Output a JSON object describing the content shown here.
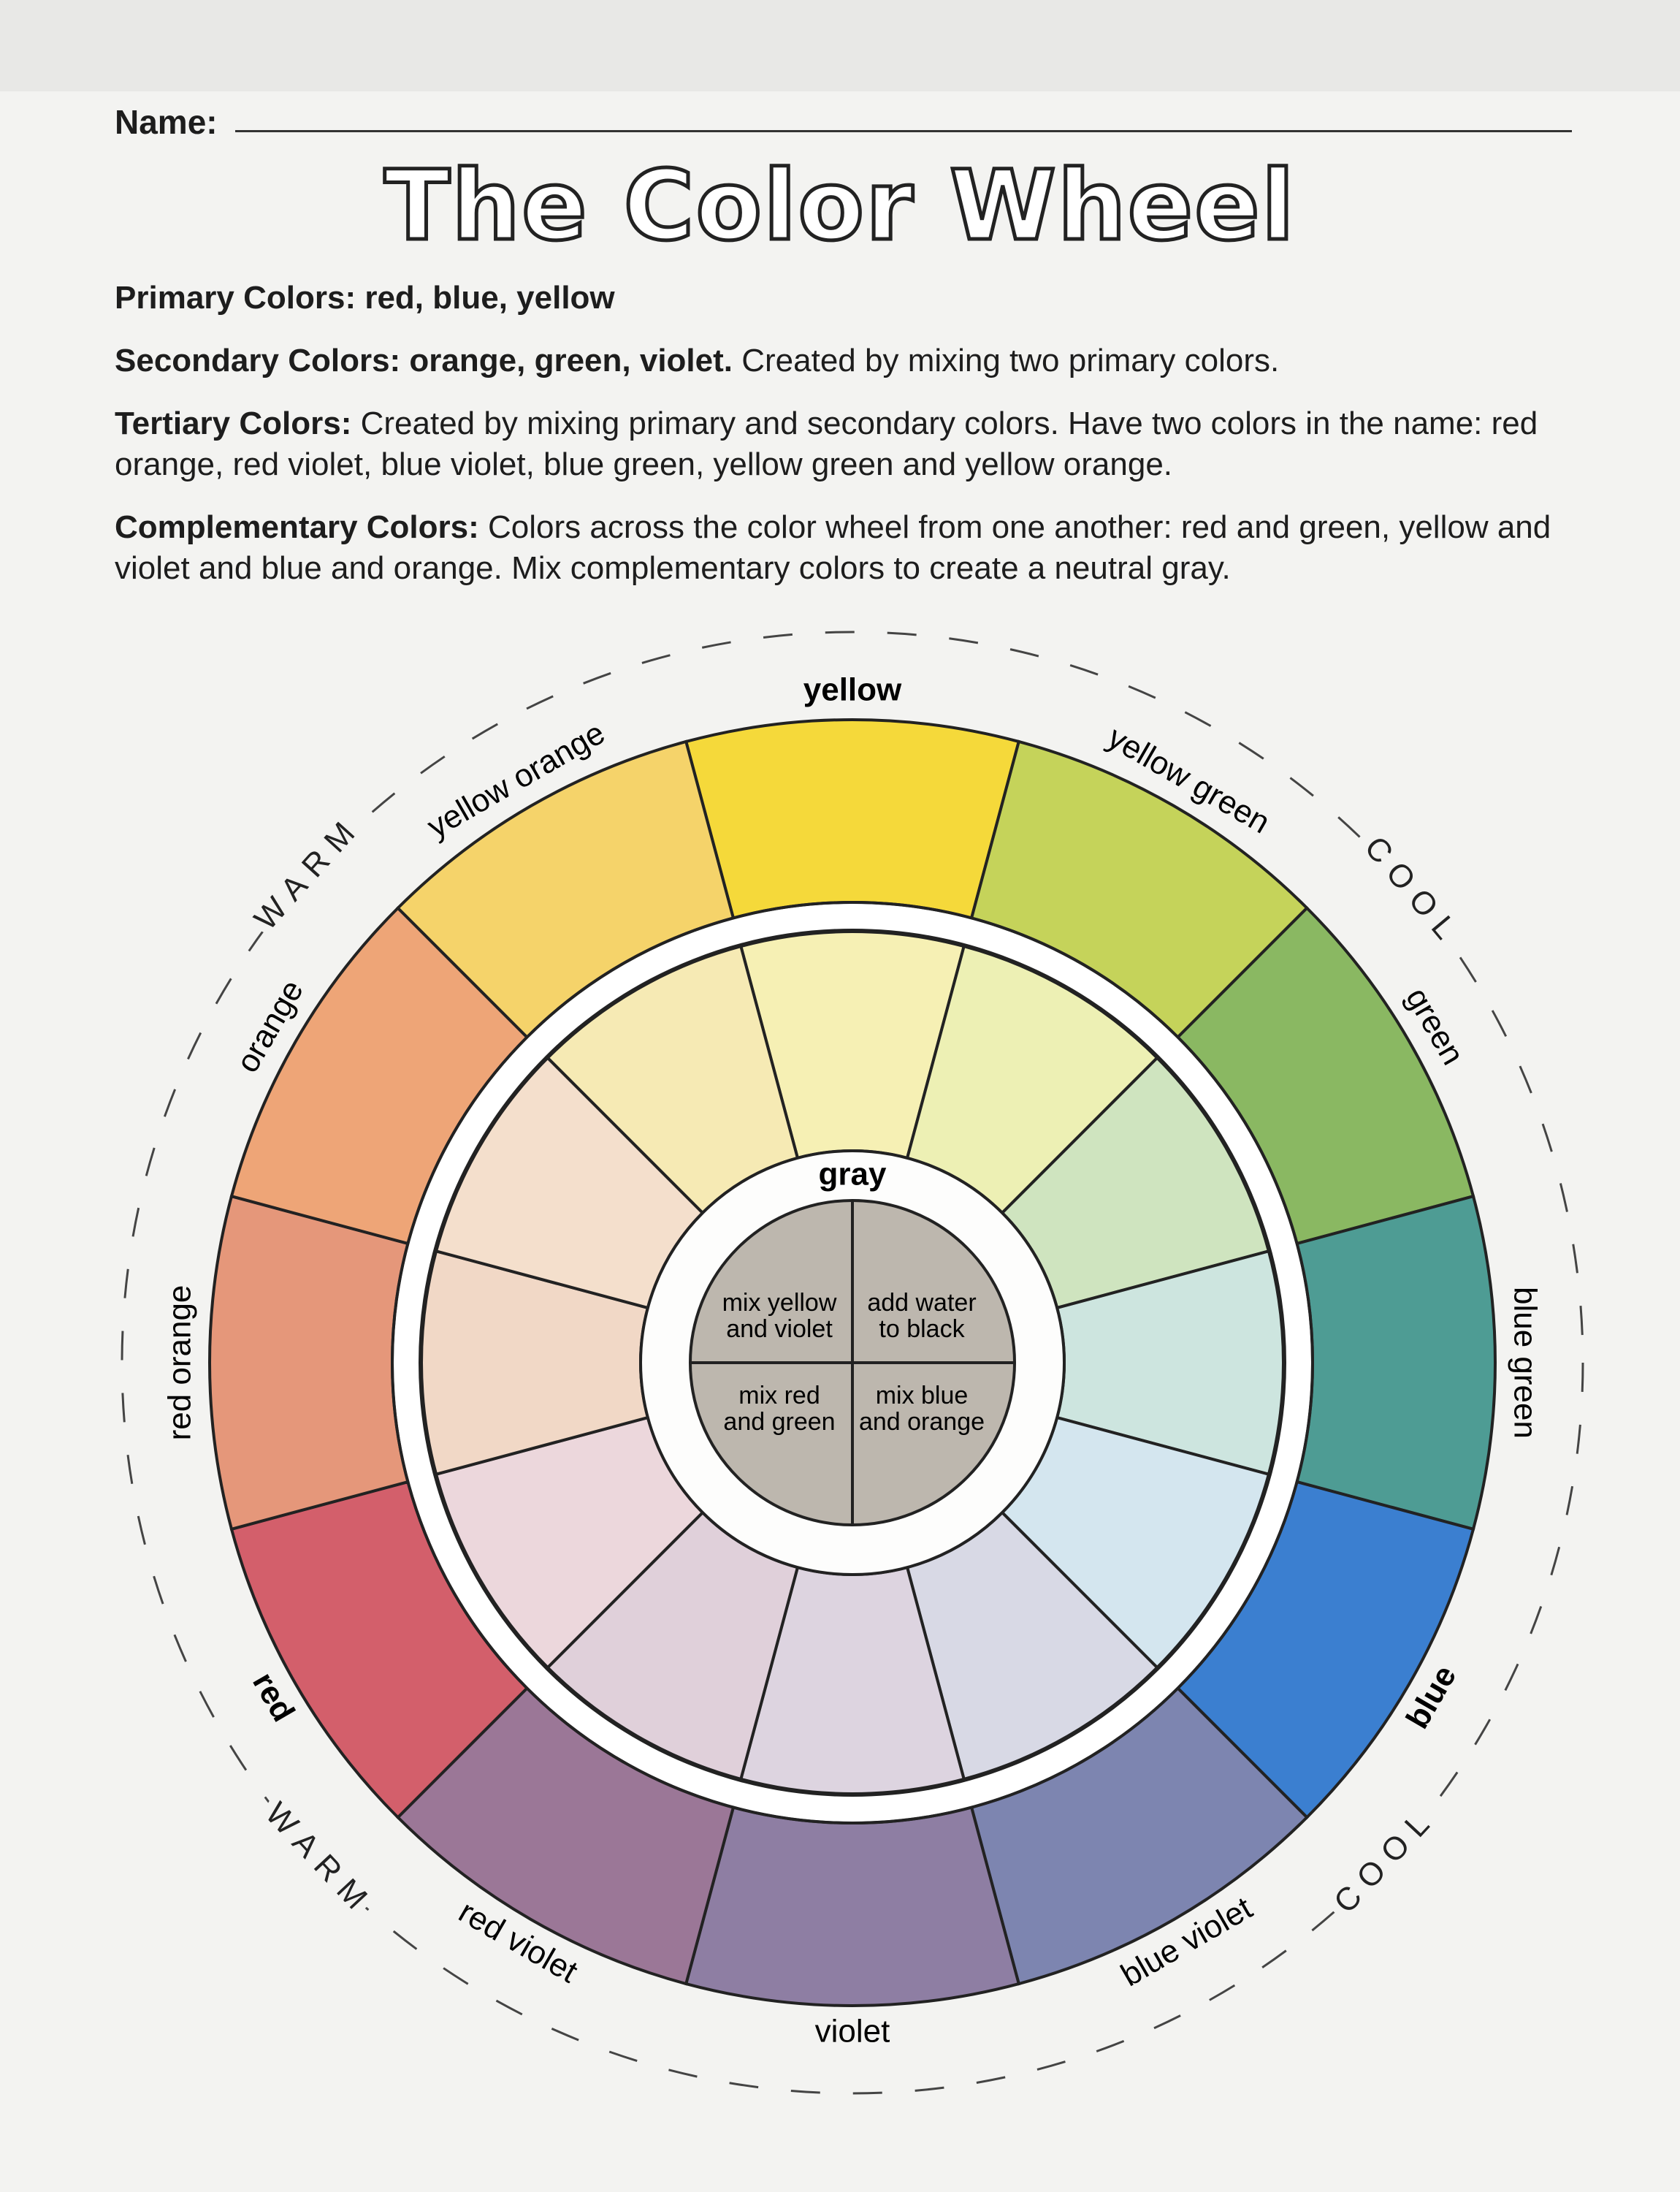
{
  "name_label": "Name:",
  "title": "The Color Wheel",
  "definitions": [
    {
      "term": "Primary Colors: red, blue, yellow"
    },
    {
      "term": "Secondary Colors: orange, green, violet.",
      "text": "Created by mixing two primary colors."
    },
    {
      "term": "Tertiary Colors:",
      "text": "Created by mixing primary and secondary colors. Have two colors in the name: red orange, red violet, blue violet, blue green, yellow green and yellow orange."
    },
    {
      "term": "Complementary Colors:",
      "text": "Colors across the color wheel from one another: red and green, yellow and violet and blue and orange. Mix complementary colors to create a neutral gray."
    }
  ],
  "wheel": {
    "segments": [
      "yellow",
      "yellow green",
      "green",
      "blue green",
      "blue",
      "blue violet",
      "violet",
      "red violet",
      "red",
      "red orange",
      "orange",
      "yellow orange"
    ],
    "side_labels": [
      "WARM",
      "COOL",
      "COOL",
      "WARM"
    ],
    "center_label": "gray",
    "mixes": [
      [
        "mix yellow",
        "and violet"
      ],
      [
        "add water",
        "to black"
      ],
      [
        "mix red",
        "and green"
      ],
      [
        "mix blue",
        "and orange"
      ]
    ]
  }
}
